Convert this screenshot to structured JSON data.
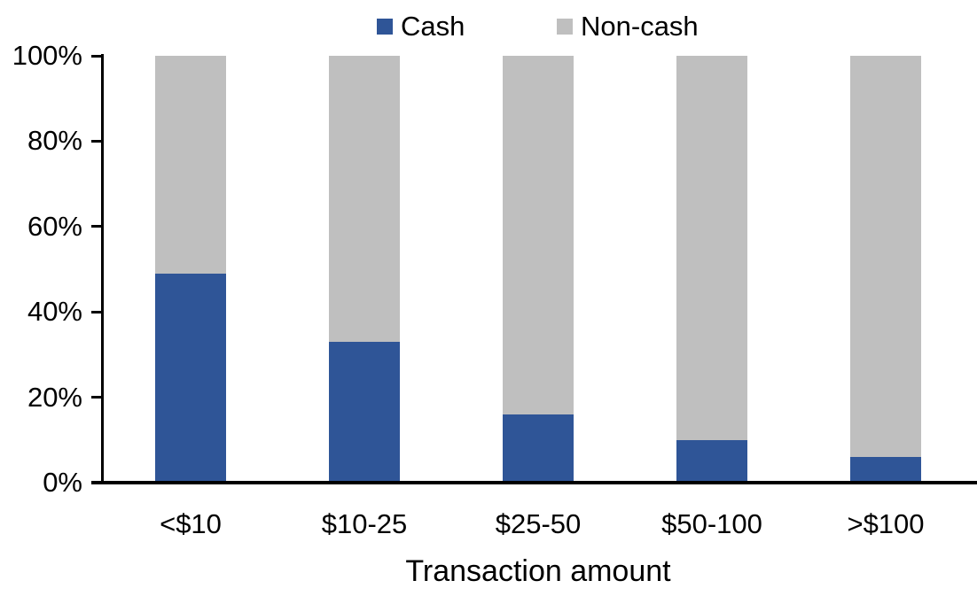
{
  "chart_data": {
    "type": "bar",
    "stacked": true,
    "orientation": "vertical",
    "title": "",
    "xlabel": "Transaction amount",
    "ylabel": "",
    "categories": [
      "<$10",
      "$10-25",
      "$25-50",
      "$50-100",
      ">$100"
    ],
    "series": [
      {
        "name": "Cash",
        "color": "#2F5597",
        "values": [
          49,
          33,
          16,
          10,
          6
        ]
      },
      {
        "name": "Non-cash",
        "color": "#BFBFBF",
        "values": [
          51,
          67,
          84,
          90,
          94
        ]
      }
    ],
    "ylim": [
      0,
      100
    ],
    "yticks": [
      0,
      20,
      40,
      60,
      80,
      100
    ],
    "ytick_format": "{v}%",
    "legend_position": "top",
    "grid": false,
    "axis_color": "#000000",
    "text_color": "#000000",
    "background": "#FFFFFF"
  }
}
